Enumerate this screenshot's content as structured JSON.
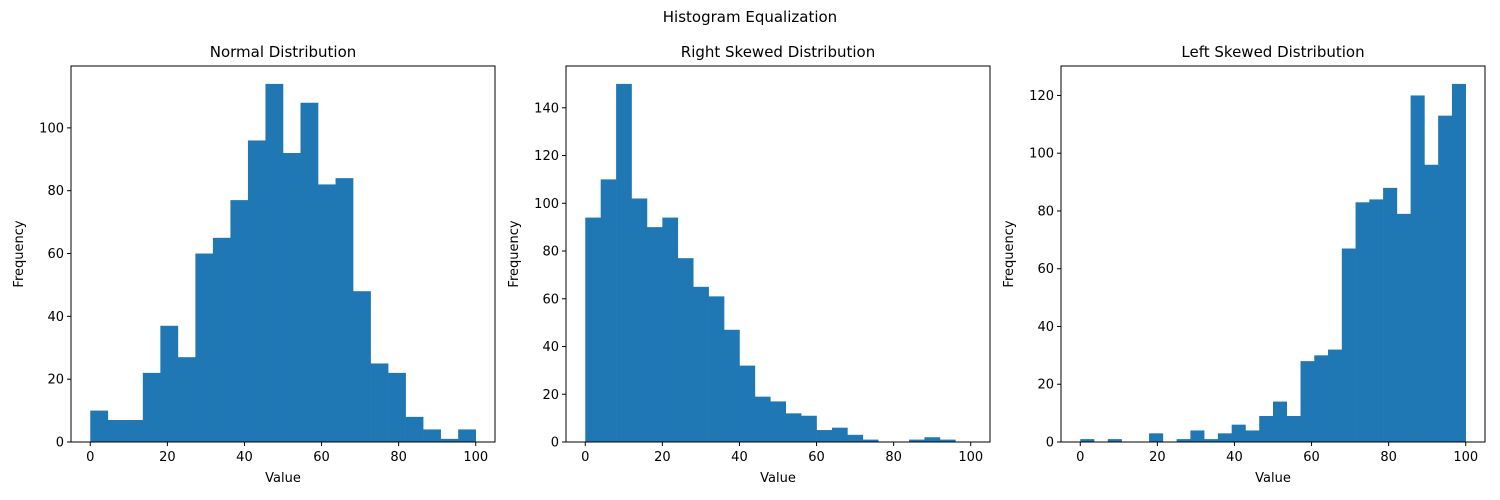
{
  "figure": {
    "title": "Histogram Equalization"
  },
  "bar_color": "#1f77b4",
  "chart_data": [
    {
      "type": "bar",
      "title": "Normal Distribution",
      "xlabel": "Value",
      "ylabel": "Frequency",
      "xlim": [
        -5.0,
        105.0
      ],
      "ylim": [
        0,
        119.7
      ],
      "xticks": [
        0,
        20,
        40,
        60,
        80,
        100
      ],
      "yticks": [
        0,
        20,
        40,
        60,
        80,
        100
      ],
      "bin_start": 0,
      "bin_width": 4.545,
      "values": [
        10,
        7,
        7,
        22,
        37,
        27,
        60,
        65,
        77,
        96,
        114,
        92,
        108,
        82,
        84,
        48,
        25,
        22,
        8,
        4,
        1,
        4
      ]
    },
    {
      "type": "bar",
      "title": "Right Skewed Distribution",
      "xlabel": "Value",
      "ylabel": "Frequency",
      "xlim": [
        -5.0,
        105.0
      ],
      "ylim": [
        0,
        157.5
      ],
      "xticks": [
        0,
        20,
        40,
        60,
        80,
        100
      ],
      "yticks": [
        0,
        20,
        40,
        60,
        80,
        100,
        120,
        140
      ],
      "bin_start": 0,
      "bin_width": 4.0,
      "values": [
        94,
        110,
        150,
        102,
        90,
        94,
        77,
        65,
        61,
        47,
        32,
        19,
        17,
        12,
        11,
        5,
        6,
        3,
        1,
        0,
        0,
        1,
        2,
        1,
        0
      ]
    },
    {
      "type": "bar",
      "title": "Left Skewed Distribution",
      "xlabel": "Value",
      "ylabel": "Frequency",
      "xlim": [
        -5.0,
        105.0
      ],
      "ylim": [
        0,
        130.2
      ],
      "xticks": [
        0,
        20,
        40,
        60,
        80,
        100
      ],
      "yticks": [
        0,
        20,
        40,
        60,
        80,
        100,
        120
      ],
      "bin_start": 0,
      "bin_width": 3.571,
      "values": [
        1,
        0,
        1,
        0,
        0,
        3,
        0,
        1,
        4,
        1,
        3,
        6,
        4,
        9,
        14,
        9,
        28,
        30,
        32,
        67,
        83,
        84,
        88,
        79,
        120,
        96,
        113,
        124
      ]
    }
  ]
}
